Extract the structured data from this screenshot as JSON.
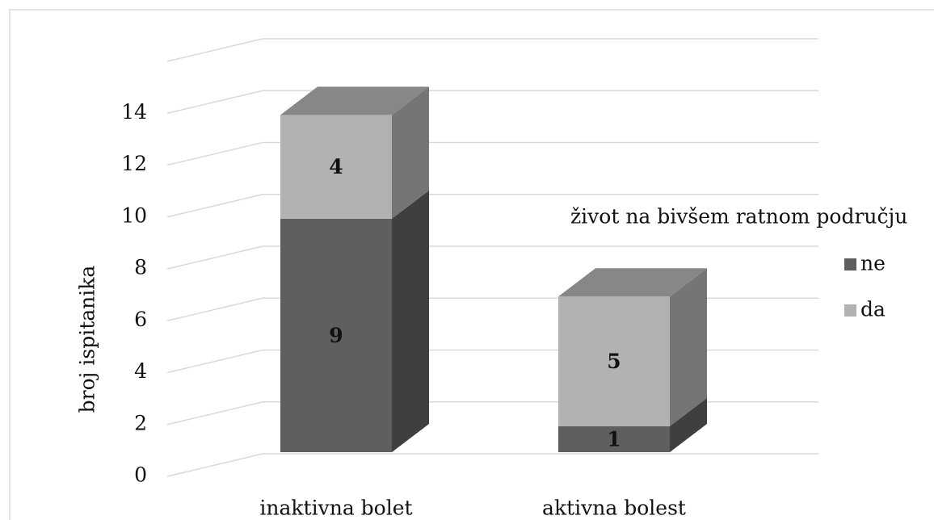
{
  "chart_data": {
    "type": "bar3d_stacked",
    "categories": [
      "inaktivna bolet",
      "aktivna bolest"
    ],
    "series": [
      {
        "name": "ne",
        "color": "#5f5f5f",
        "values": [
          9,
          1
        ]
      },
      {
        "name": "da",
        "color": "#b2b2b2",
        "values": [
          4,
          5
        ]
      }
    ],
    "y_label": "broj ispitanika",
    "legend_title": "život na bivšem ratnom području",
    "legend": "right",
    "ylim": [
      0,
      16
    ],
    "yticks": [
      0,
      2,
      4,
      6,
      8,
      10,
      12,
      14
    ],
    "grid": true
  }
}
